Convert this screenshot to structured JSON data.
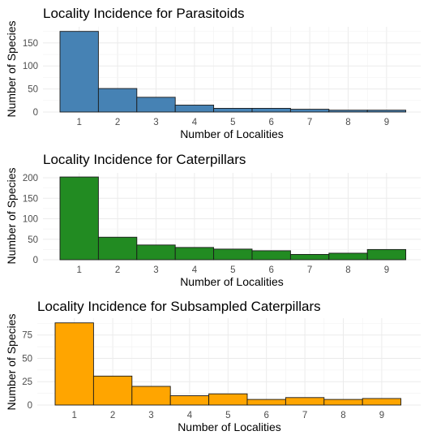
{
  "chart_data": [
    {
      "type": "bar",
      "title": "Locality Incidence for Parasitoids",
      "xlabel": "Number of Localities",
      "ylabel": "Number of Species",
      "categories": [
        "1",
        "2",
        "3",
        "4",
        "5",
        "6",
        "7",
        "8",
        "9"
      ],
      "values": [
        175,
        51,
        32,
        15,
        8,
        8,
        6,
        4,
        4
      ],
      "ylim": [
        0,
        185
      ],
      "yticks": [
        0,
        50,
        100,
        150
      ],
      "color": "#4682b4",
      "grid": true
    },
    {
      "type": "bar",
      "title": "Locality Incidence for Caterpillars",
      "xlabel": "Number of Localities",
      "ylabel": "Number of Species",
      "categories": [
        "1",
        "2",
        "3",
        "4",
        "5",
        "6",
        "7",
        "8",
        "9"
      ],
      "values": [
        202,
        55,
        36,
        30,
        26,
        22,
        13,
        16,
        25
      ],
      "ylim": [
        0,
        212
      ],
      "yticks": [
        0,
        50,
        100,
        150,
        200
      ],
      "color": "#228b22",
      "grid": true
    },
    {
      "type": "bar",
      "title": "Locality Incidence for Subsampled Caterpillars",
      "xlabel": "Number of Localities",
      "ylabel": "Number of Species",
      "categories": [
        "1",
        "2",
        "3",
        "4",
        "5",
        "6",
        "7",
        "8",
        "9"
      ],
      "values": [
        88,
        31,
        20,
        10,
        12,
        6,
        8,
        6,
        7
      ],
      "ylim": [
        0,
        93
      ],
      "yticks": [
        0,
        25,
        50,
        75
      ],
      "color": "#ffa500",
      "grid": true
    }
  ]
}
